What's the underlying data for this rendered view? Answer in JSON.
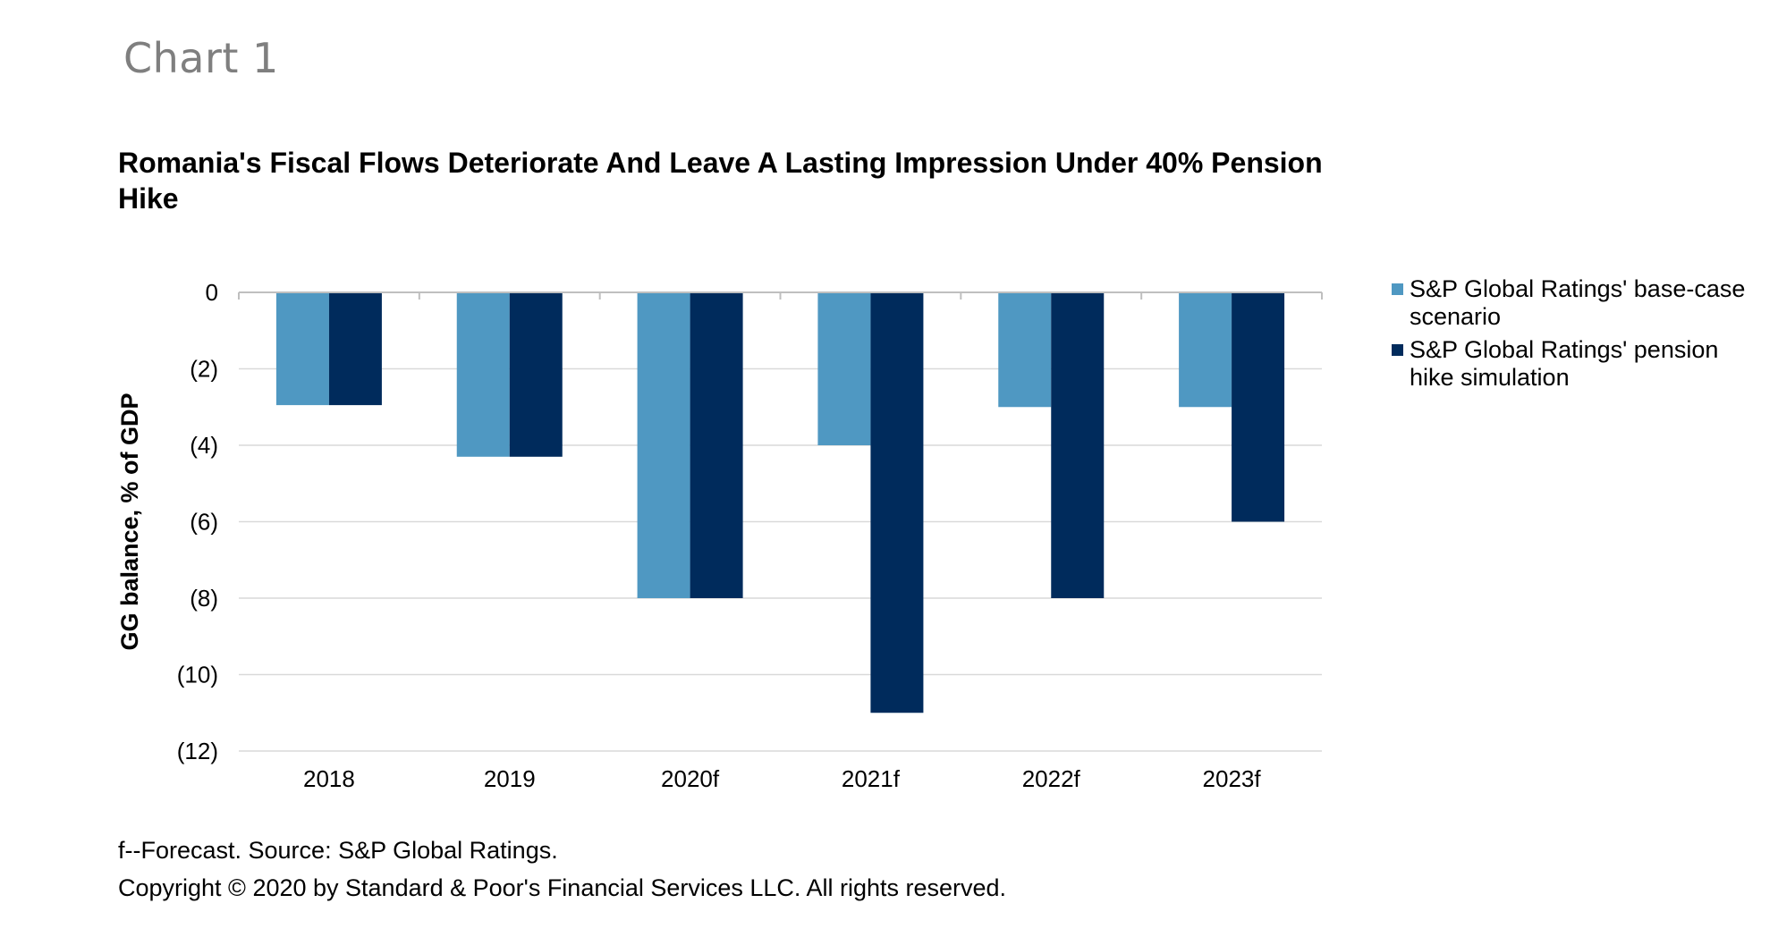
{
  "header": {
    "chart_label": "Chart 1"
  },
  "footer": {
    "note": "f--Forecast. Source: S&P Global Ratings.",
    "copyright": "Copyright © 2020 by Standard & Poor's Financial Services LLC. All rights reserved."
  },
  "colors": {
    "base_case": "#4f98c2",
    "pension_hike": "#002b5c",
    "gridline": "#d9d9d9",
    "axis": "#bfbfbf"
  },
  "chart_data": {
    "type": "bar",
    "title": "Romania's Fiscal Flows Deteriorate And Leave A Lasting Impression Under 40% Pension Hike",
    "xlabel": "",
    "ylabel": "GG balance, % of GDP",
    "categories": [
      "2018",
      "2019",
      "2020f",
      "2021f",
      "2022f",
      "2023f"
    ],
    "series": [
      {
        "name": "S&P Global Ratings' base-case scenario",
        "values": [
          -2.95,
          -4.3,
          -8.0,
          -4.0,
          -3.0,
          -3.0
        ]
      },
      {
        "name": "S&P Global Ratings' pension hike simulation",
        "values": [
          -2.95,
          -4.3,
          -8.0,
          -11.0,
          -8.0,
          -6.0
        ]
      }
    ],
    "ylim": [
      -12,
      0
    ],
    "yticks": [
      0,
      -2,
      -4,
      -6,
      -8,
      -10,
      -12
    ],
    "ytick_labels": [
      "0",
      "(2)",
      "(4)",
      "(6)",
      "(8)",
      "(10)",
      "(12)"
    ],
    "grid": true,
    "legend_position": "right"
  }
}
